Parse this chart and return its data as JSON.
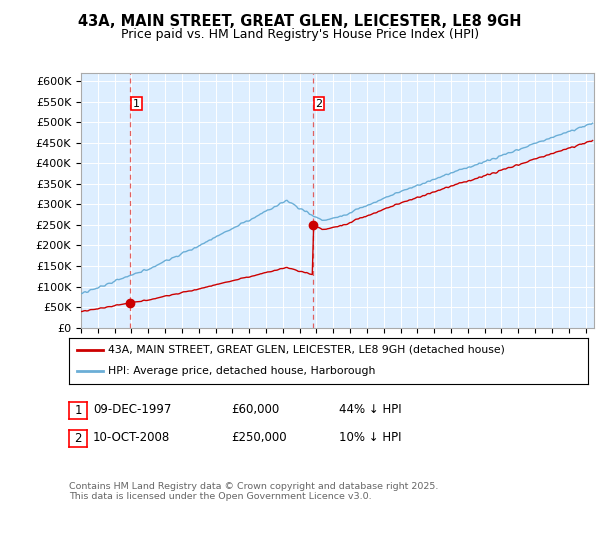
{
  "title1": "43A, MAIN STREET, GREAT GLEN, LEICESTER, LE8 9GH",
  "title2": "Price paid vs. HM Land Registry's House Price Index (HPI)",
  "ylabel_ticks": [
    "£0",
    "£50K",
    "£100K",
    "£150K",
    "£200K",
    "£250K",
    "£300K",
    "£350K",
    "£400K",
    "£450K",
    "£500K",
    "£550K",
    "£600K"
  ],
  "ytick_values": [
    0,
    50000,
    100000,
    150000,
    200000,
    250000,
    300000,
    350000,
    400000,
    450000,
    500000,
    550000,
    600000
  ],
  "ylim": [
    0,
    620000
  ],
  "xlim_start": 1995.0,
  "xlim_end": 2025.5,
  "hpi_color": "#6baed6",
  "price_color": "#cc0000",
  "dashed_color": "#e06060",
  "bg_color": "#ddeeff",
  "purchase1_x": 1997.94,
  "purchase1_y": 60000,
  "purchase2_x": 2008.78,
  "purchase2_y": 250000,
  "legend_label1": "43A, MAIN STREET, GREAT GLEN, LEICESTER, LE8 9GH (detached house)",
  "legend_label2": "HPI: Average price, detached house, Harborough",
  "note1_date": "09-DEC-1997",
  "note1_price": "£60,000",
  "note1_hpi": "44% ↓ HPI",
  "note2_date": "10-OCT-2008",
  "note2_price": "£250,000",
  "note2_hpi": "10% ↓ HPI",
  "footer": "Contains HM Land Registry data © Crown copyright and database right 2025.\nThis data is licensed under the Open Government Licence v3.0."
}
